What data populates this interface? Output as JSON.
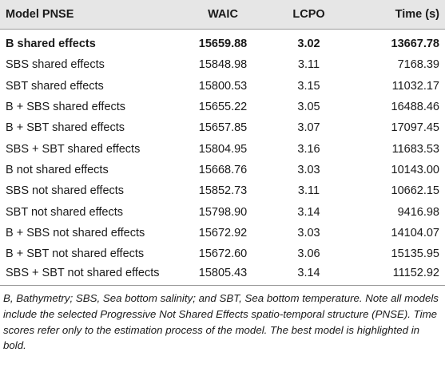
{
  "table": {
    "headers": [
      "Model PNSE",
      "WAIC",
      "LCPO",
      "Time (s)"
    ],
    "rows": [
      {
        "model": "B shared effects",
        "waic": "15659.88",
        "lcpo": "3.02",
        "time": "13667.78",
        "bold": true
      },
      {
        "model": "SBS shared effects",
        "waic": "15848.98",
        "lcpo": "3.11",
        "time": "7168.39",
        "bold": false
      },
      {
        "model": "SBT shared effects",
        "waic": "15800.53",
        "lcpo": "3.15",
        "time": "11032.17",
        "bold": false
      },
      {
        "model": "B + SBS shared effects",
        "waic": "15655.22",
        "lcpo": "3.05",
        "time": "16488.46",
        "bold": false
      },
      {
        "model": "B + SBT shared effects",
        "waic": "15657.85",
        "lcpo": "3.07",
        "time": "17097.45",
        "bold": false
      },
      {
        "model": "SBS + SBT shared effects",
        "waic": "15804.95",
        "lcpo": "3.16",
        "time": "11683.53",
        "bold": false
      },
      {
        "model": "B not shared effects",
        "waic": "15668.76",
        "lcpo": "3.03",
        "time": "10143.00",
        "bold": false
      },
      {
        "model": "SBS not shared effects",
        "waic": "15852.73",
        "lcpo": "3.11",
        "time": "10662.15",
        "bold": false
      },
      {
        "model": "SBT not shared effects",
        "waic": "15798.90",
        "lcpo": "3.14",
        "time": "9416.98",
        "bold": false
      },
      {
        "model": "B + SBS not shared effects",
        "waic": "15672.92",
        "lcpo": "3.03",
        "time": "14104.07",
        "bold": false
      },
      {
        "model": "B + SBT not shared effects",
        "waic": "15672.60",
        "lcpo": "3.06",
        "time": "15135.95",
        "bold": false
      },
      {
        "model": "SBS + SBT not shared effects",
        "waic": "15805.43",
        "lcpo": "3.14",
        "time": "11152.92",
        "bold": false
      }
    ]
  },
  "footnote": "B, Bathymetry; SBS, Sea bottom salinity; and SBT, Sea bottom temperature. Note all models include the selected Progressive Not Shared Effects spatio-temporal structure (PNSE). Time scores refer only to the estimation process of the model. The best model is highlighted in bold.",
  "colors": {
    "header_background": "#e6e6e6",
    "rule": "#9a9a9a",
    "text": "#1a1a1a"
  }
}
